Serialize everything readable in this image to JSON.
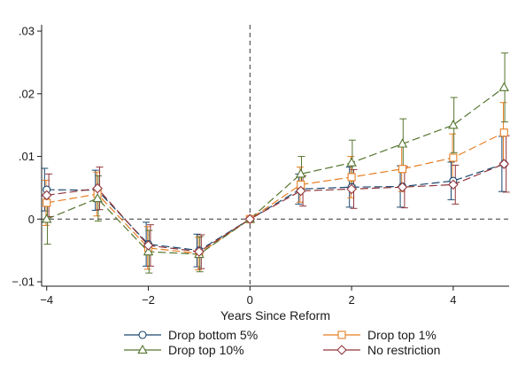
{
  "chart_data": {
    "type": "line",
    "title": "",
    "xlabel": "Years Since Reform",
    "ylabel": "",
    "xlim": [
      -4.1,
      5.1
    ],
    "ylim": [
      -0.0107,
      0.031
    ],
    "x_ticks": [
      -4,
      -2,
      0,
      2,
      4
    ],
    "x_tick_labels": [
      "−4",
      "−2",
      "0",
      "2",
      "4"
    ],
    "y_ticks": [
      -0.01,
      0,
      0.01,
      0.02,
      0.03
    ],
    "y_tick_labels": [
      "−.01",
      "0",
      ".01",
      ".02",
      ".03"
    ],
    "grid": false,
    "reference_lines": {
      "y": 0,
      "x": 0,
      "style": "dashed"
    },
    "legend_position": "bottom",
    "x": [
      -4,
      -3,
      -2,
      -1,
      0,
      1,
      2,
      3,
      4,
      5
    ],
    "series": [
      {
        "name": "Drop bottom 5%",
        "color": "#1a476f",
        "marker": "circle",
        "values": [
          0.0047,
          0.0046,
          -0.004,
          -0.005,
          0,
          0.0048,
          0.0051,
          0.0052,
          0.0061,
          0.0088
        ],
        "ci_low": [
          0.0013,
          0.0014,
          -0.0075,
          -0.0076,
          0,
          0.0024,
          0.0019,
          0.0019,
          0.0031,
          0.0044
        ],
        "ci_high": [
          0.0081,
          0.0078,
          -0.0005,
          -0.0024,
          0,
          0.0072,
          0.0083,
          0.0085,
          0.0091,
          0.0132
        ]
      },
      {
        "name": "Drop top 1%",
        "color": "#e67e22",
        "marker": "square",
        "values": [
          0.0026,
          0.004,
          -0.0046,
          -0.0055,
          0,
          0.0055,
          0.0067,
          0.008,
          0.0098,
          0.0138
        ],
        "ci_low": [
          -0.001,
          0.0005,
          -0.008,
          -0.0081,
          0,
          0.0027,
          0.0034,
          0.0044,
          0.006,
          0.009
        ],
        "ci_high": [
          0.0062,
          0.0075,
          -0.0012,
          -0.0029,
          0,
          0.0083,
          0.01,
          0.0116,
          0.0136,
          0.0186
        ]
      },
      {
        "name": "Drop top 10%",
        "color": "#55752f",
        "marker": "triangle",
        "values": [
          0.0,
          0.0033,
          -0.0052,
          -0.0056,
          0,
          0.0072,
          0.009,
          0.012,
          0.015,
          0.021
        ],
        "ci_low": [
          -0.004,
          -0.0003,
          -0.0086,
          -0.0084,
          0,
          0.0044,
          0.0054,
          0.008,
          0.0106,
          0.0155
        ],
        "ci_high": [
          0.004,
          0.0069,
          -0.0018,
          -0.0028,
          0,
          0.01,
          0.0126,
          0.016,
          0.0194,
          0.0265
        ]
      },
      {
        "name": "No restriction",
        "color": "#90353b",
        "marker": "diamond",
        "values": [
          0.0038,
          0.0049,
          -0.0042,
          -0.0052,
          0,
          0.0045,
          0.0048,
          0.0051,
          0.0055,
          0.0088
        ],
        "ci_low": [
          0.0004,
          0.0015,
          -0.0075,
          -0.0079,
          0,
          0.0021,
          0.0017,
          0.0018,
          0.0024,
          0.0043
        ],
        "ci_high": [
          0.0072,
          0.0083,
          -0.0009,
          -0.0025,
          0,
          0.0069,
          0.0079,
          0.0084,
          0.0086,
          0.0133
        ]
      }
    ],
    "legend": {
      "columns": 2,
      "order": [
        0,
        1,
        2,
        3
      ]
    }
  }
}
